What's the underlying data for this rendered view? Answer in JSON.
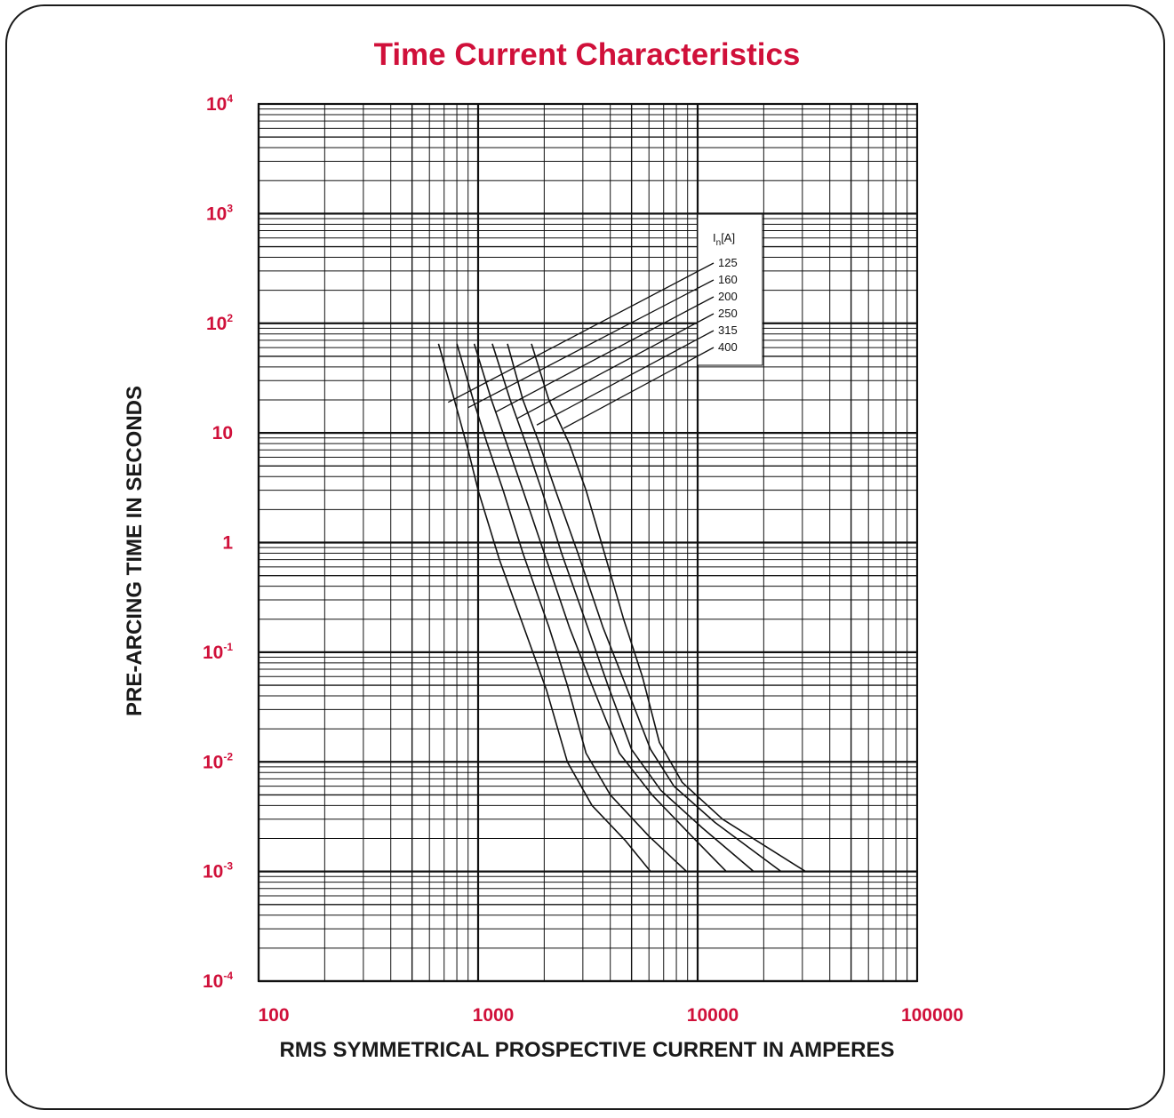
{
  "chart_data": {
    "type": "line",
    "title": "Time Current Characteristics",
    "xlabel": "RMS SYMMETRICAL PROSPECTIVE CURRENT IN AMPERES",
    "ylabel": "PRE-ARCING TIME IN SECONDS",
    "x_scale": "log",
    "y_scale": "log",
    "xlim": [
      100,
      100000
    ],
    "ylim": [
      0.0001,
      10000
    ],
    "grid": true,
    "x_ticks": [
      {
        "value": 100,
        "label": "100"
      },
      {
        "value": 1000,
        "label": "1000"
      },
      {
        "value": 10000,
        "label": "10000"
      },
      {
        "value": 100000,
        "label": "100000"
      }
    ],
    "y_ticks": [
      {
        "value": 10000,
        "base": "10",
        "exp": "4"
      },
      {
        "value": 1000,
        "base": "10",
        "exp": "3"
      },
      {
        "value": 100,
        "base": "10",
        "exp": "2"
      },
      {
        "value": 10,
        "base": "10",
        "exp": ""
      },
      {
        "value": 1,
        "base": "1",
        "exp": ""
      },
      {
        "value": 0.1,
        "base": "10",
        "exp": "-1"
      },
      {
        "value": 0.01,
        "base": "10",
        "exp": "-2"
      },
      {
        "value": 0.001,
        "base": "10",
        "exp": "-3"
      },
      {
        "value": 0.0001,
        "base": "10",
        "exp": "-4"
      }
    ],
    "legend": {
      "title_main": "I",
      "title_sub": "n",
      "title_rest": "[A]",
      "placement": "top-right"
    },
    "series": [
      {
        "name": "125",
        "x": [
          660,
          780,
          900,
          1000,
          1250,
          1650,
          2050,
          2550,
          3300,
          4700,
          6100
        ],
        "y": [
          65,
          20,
          7,
          3,
          0.7,
          0.15,
          0.045,
          0.01,
          0.004,
          0.0019,
          0.001
        ]
      },
      {
        "name": "160",
        "x": [
          800,
          950,
          1100,
          1300,
          1600,
          2100,
          2550,
          3100,
          4000,
          6000,
          8900
        ],
        "y": [
          65,
          20,
          8,
          3,
          0.8,
          0.17,
          0.05,
          0.012,
          0.005,
          0.0021,
          0.001
        ]
      },
      {
        "name": "200",
        "x": [
          960,
          1150,
          1350,
          1600,
          2000,
          2600,
          3300,
          4400,
          6200,
          9400,
          13500
        ],
        "y": [
          65,
          20,
          8,
          3,
          0.8,
          0.17,
          0.05,
          0.012,
          0.005,
          0.0021,
          0.001
        ]
      },
      {
        "name": "250",
        "x": [
          1160,
          1400,
          1650,
          1950,
          2400,
          3150,
          3900,
          5000,
          6800,
          10500,
          18000
        ],
        "y": [
          65,
          20,
          8,
          3,
          0.8,
          0.17,
          0.05,
          0.013,
          0.0055,
          0.0025,
          0.001
        ]
      },
      {
        "name": "315",
        "x": [
          1360,
          1600,
          1900,
          2250,
          2850,
          3700,
          4700,
          6100,
          7800,
          12000,
          24000
        ],
        "y": [
          65,
          20,
          8,
          3,
          0.8,
          0.17,
          0.05,
          0.013,
          0.006,
          0.0028,
          0.001
        ]
      },
      {
        "name": "400",
        "x": [
          1750,
          2100,
          2600,
          3100,
          3700,
          4600,
          5600,
          6700,
          8500,
          13000,
          31000
        ],
        "y": [
          65,
          20,
          8,
          3,
          0.9,
          0.2,
          0.06,
          0.015,
          0.0065,
          0.003,
          0.001
        ]
      }
    ],
    "leader_anchors": [
      {
        "x": 730,
        "y": 19
      },
      {
        "x": 900,
        "y": 17
      },
      {
        "x": 1200,
        "y": 15.5
      },
      {
        "x": 1500,
        "y": 13.5
      },
      {
        "x": 1850,
        "y": 11.8
      },
      {
        "x": 2450,
        "y": 11
      }
    ]
  }
}
